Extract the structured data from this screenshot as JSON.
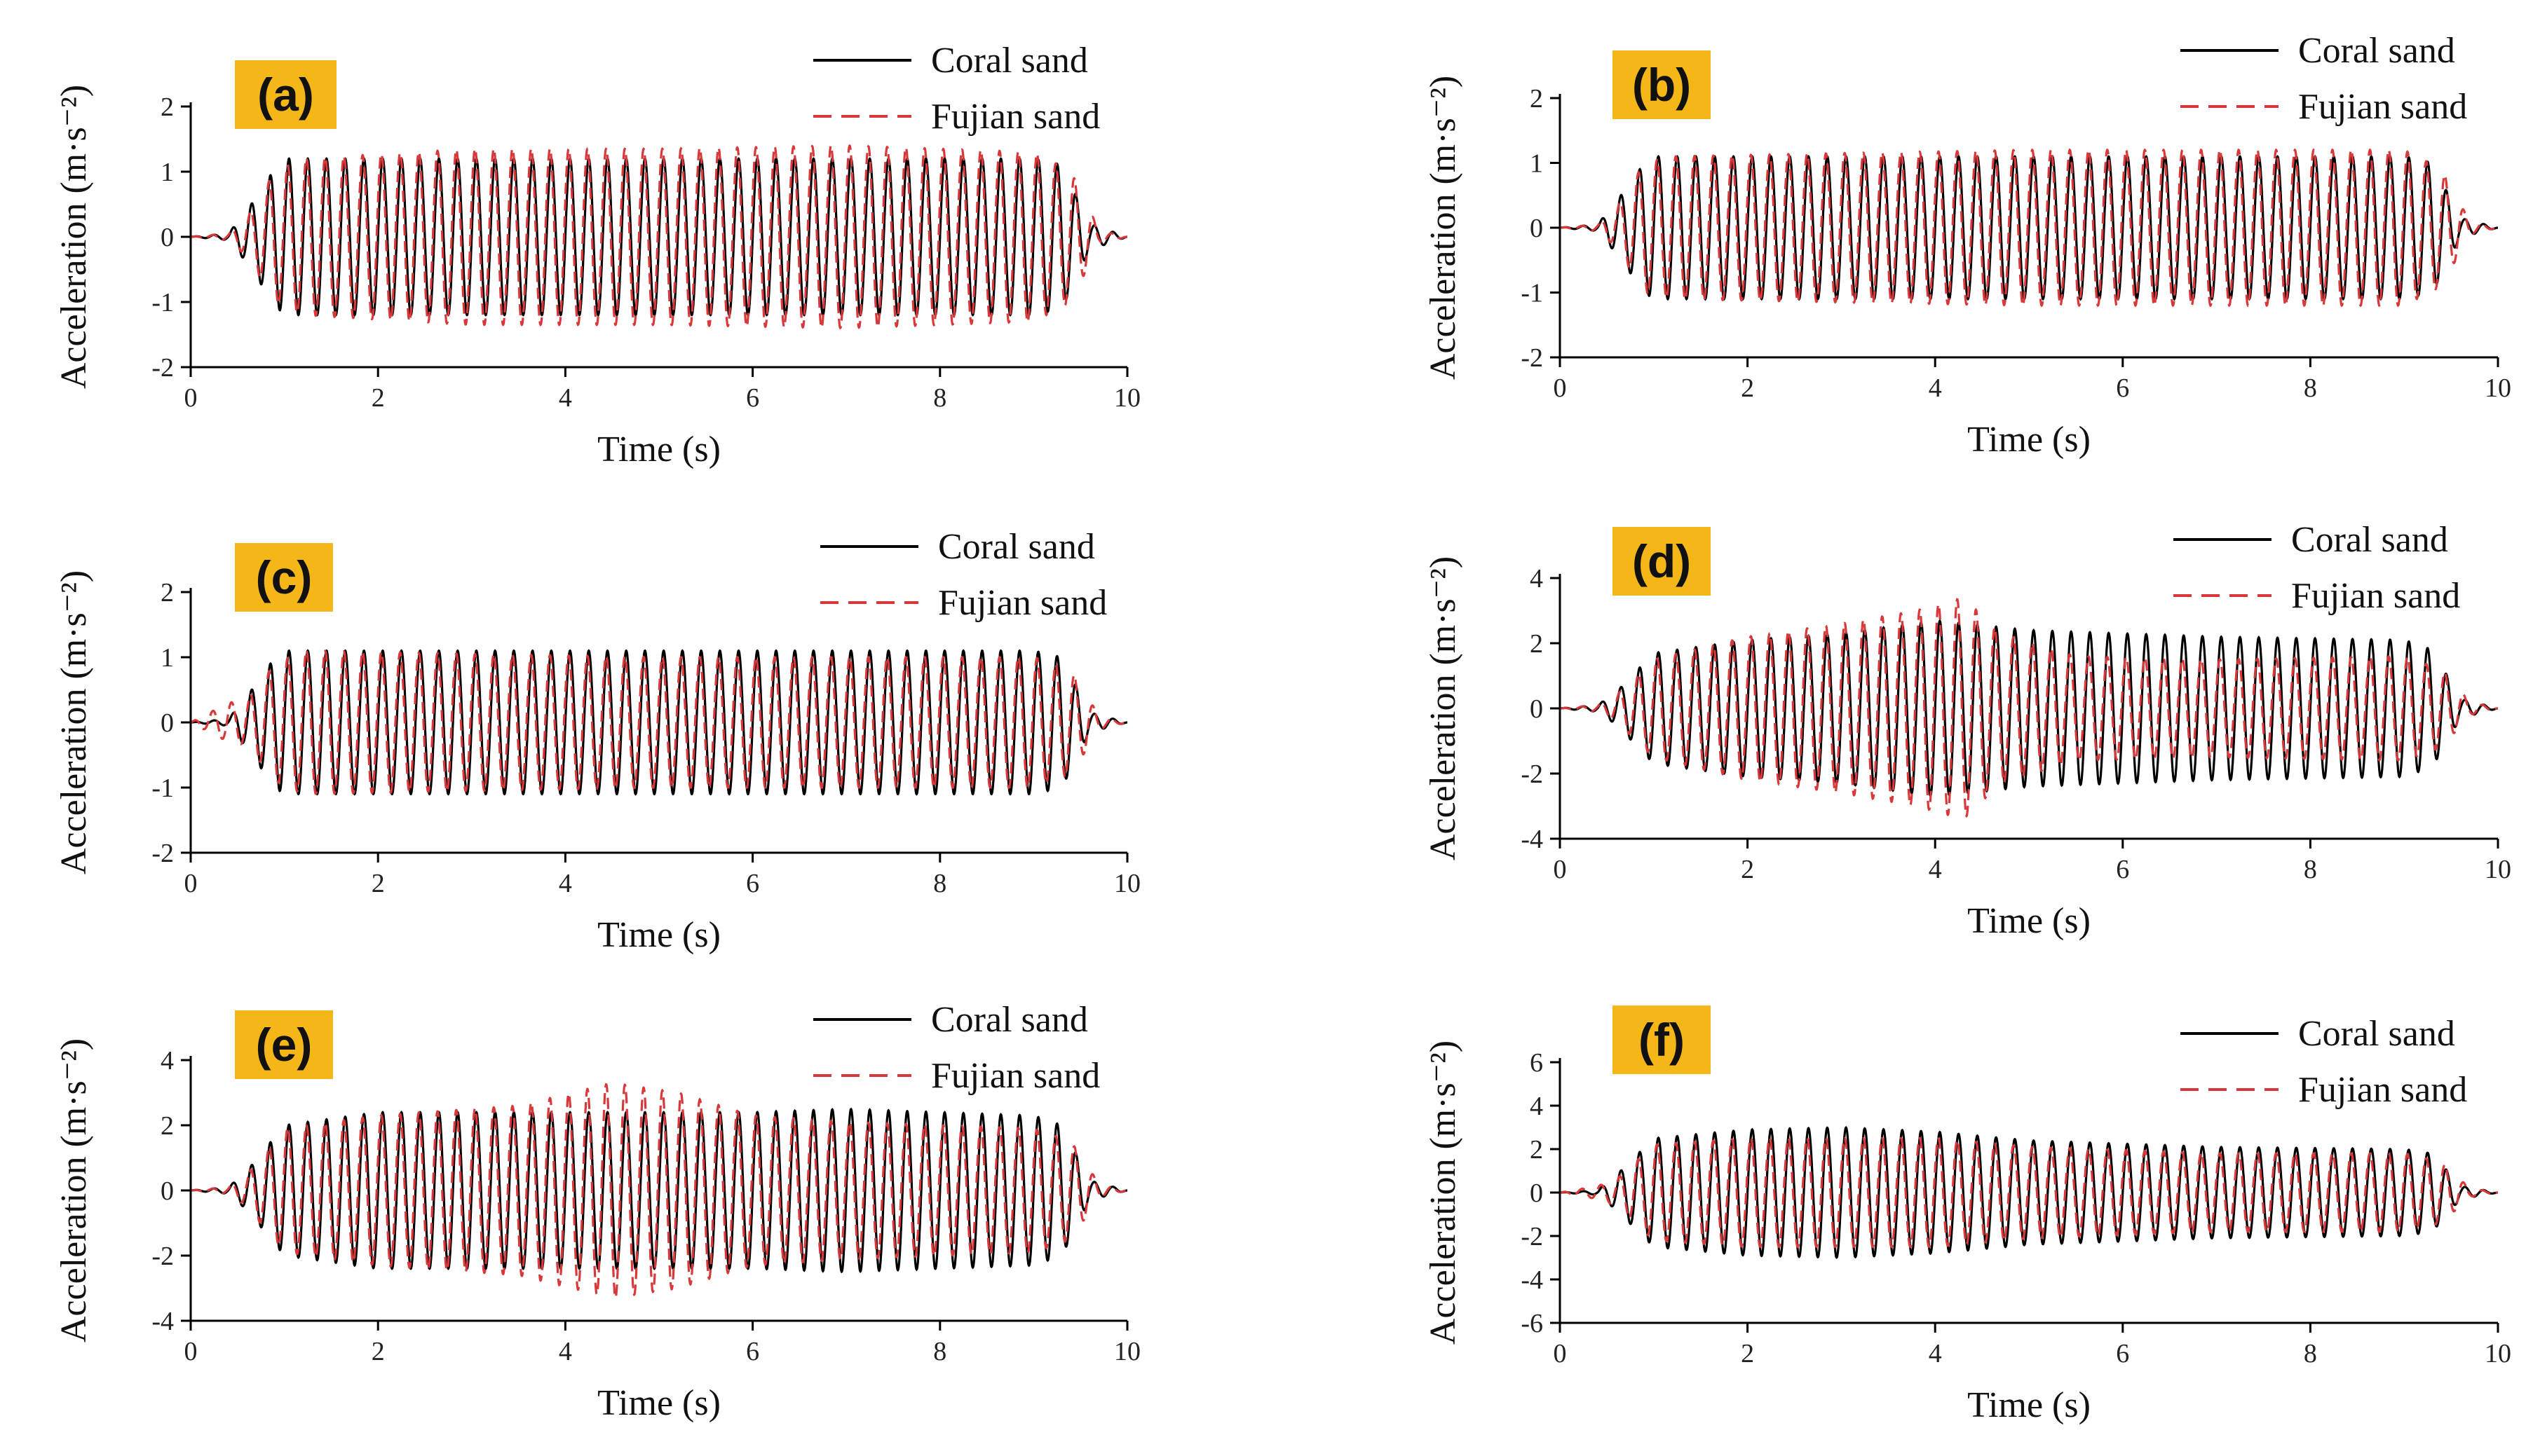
{
  "colors": {
    "coral": "#000000",
    "fujian": "#d9383a",
    "badge": "#f5b617",
    "axis": "#000000"
  },
  "chart_data": [
    {
      "type": "line",
      "panel_label": "(a)",
      "xlabel": "Time (s)",
      "ylabel": "Acceleration (m·s⁻²)",
      "xlim": [
        0,
        10
      ],
      "ylim": [
        -2,
        2
      ],
      "xticks": [
        0,
        2,
        4,
        6,
        8,
        10
      ],
      "yticks": [
        -2,
        -1,
        0,
        1,
        2
      ],
      "frequency_hz": 5,
      "series": [
        {
          "name": "Coral sand",
          "style": "solid",
          "envelope_t": [
            0,
            0.4,
            0.6,
            0.9,
            1.0,
            9.0,
            9.3,
            9.6,
            10
          ],
          "envelope_a": [
            0,
            0.05,
            0.4,
            1.05,
            1.2,
            1.2,
            1.1,
            0.2,
            0
          ]
        },
        {
          "name": "Fujian sand",
          "style": "dashed",
          "envelope_t": [
            0,
            0.4,
            0.6,
            0.9,
            1.2,
            3.0,
            5.0,
            7.0,
            9.0,
            9.4,
            9.7,
            10
          ],
          "envelope_a": [
            0,
            0.05,
            0.3,
            1.0,
            1.2,
            1.35,
            1.35,
            1.4,
            1.3,
            1.0,
            0.1,
            0
          ]
        }
      ],
      "legend": [
        "Coral sand",
        "Fujian sand"
      ]
    },
    {
      "type": "line",
      "panel_label": "(b)",
      "xlabel": "Time (s)",
      "ylabel": "Acceleration (m·s⁻²)",
      "xlim": [
        0,
        10
      ],
      "ylim": [
        -2,
        2
      ],
      "xticks": [
        0,
        2,
        4,
        6,
        8,
        10
      ],
      "yticks": [
        -2,
        -1,
        0,
        1,
        2
      ],
      "frequency_hz": 5,
      "series": [
        {
          "name": "Coral sand",
          "style": "solid",
          "envelope_t": [
            0,
            0.4,
            0.6,
            0.9,
            1.0,
            9.0,
            9.3,
            9.6,
            10
          ],
          "envelope_a": [
            0,
            0.05,
            0.4,
            1.0,
            1.1,
            1.1,
            1.0,
            0.15,
            0
          ]
        },
        {
          "name": "Fujian sand",
          "style": "dashed",
          "envelope_t": [
            0,
            0.4,
            0.6,
            0.9,
            1.2,
            3.0,
            5.0,
            7.0,
            9.0,
            9.4,
            9.7,
            10
          ],
          "envelope_a": [
            0,
            0.05,
            0.3,
            1.0,
            1.1,
            1.15,
            1.2,
            1.2,
            1.2,
            0.9,
            0.1,
            0
          ]
        }
      ],
      "legend": [
        "Coral sand",
        "Fujian sand"
      ]
    },
    {
      "type": "line",
      "panel_label": "(c)",
      "xlabel": "Time (s)",
      "ylabel": "Acceleration (m·s⁻²)",
      "xlim": [
        0,
        10
      ],
      "ylim": [
        -2,
        2
      ],
      "xticks": [
        0,
        2,
        4,
        6,
        8,
        10
      ],
      "yticks": [
        -2,
        -1,
        0,
        1,
        2
      ],
      "frequency_hz": 5,
      "series": [
        {
          "name": "Coral sand",
          "style": "solid",
          "envelope_t": [
            0,
            0.4,
            0.6,
            0.9,
            1.0,
            9.0,
            9.3,
            9.6,
            10
          ],
          "envelope_a": [
            0,
            0.05,
            0.4,
            1.0,
            1.1,
            1.1,
            1.0,
            0.15,
            0
          ]
        },
        {
          "name": "Fujian sand",
          "style": "dashed",
          "envelope_t": [
            0,
            0.4,
            0.6,
            0.9,
            1.2,
            3.0,
            5.0,
            7.0,
            9.0,
            9.4,
            9.7,
            10
          ],
          "envelope_a": [
            0,
            0.3,
            0.35,
            0.9,
            1.1,
            1.05,
            1.0,
            1.0,
            1.0,
            0.8,
            0.1,
            0
          ]
        }
      ],
      "legend": [
        "Coral sand",
        "Fujian sand"
      ]
    },
    {
      "type": "line",
      "panel_label": "(d)",
      "xlabel": "Time (s)",
      "ylabel": "Acceleration (m·s⁻²)",
      "xlim": [
        0,
        10
      ],
      "ylim": [
        -4,
        4
      ],
      "xticks": [
        0,
        2,
        4,
        6,
        8,
        10
      ],
      "yticks": [
        -4,
        -2,
        0,
        2,
        4
      ],
      "frequency_hz": 5,
      "series": [
        {
          "name": "Coral sand",
          "style": "solid",
          "envelope_t": [
            0,
            0.4,
            0.6,
            1.0,
            2.0,
            3.0,
            4.0,
            5.0,
            7.0,
            9.0,
            9.3,
            9.6,
            10
          ],
          "envelope_a": [
            0,
            0.1,
            0.5,
            1.7,
            2.1,
            2.3,
            2.7,
            2.4,
            2.2,
            2.1,
            1.8,
            0.3,
            0
          ]
        },
        {
          "name": "Fujian sand",
          "style": "dashed",
          "envelope_t": [
            0,
            0.4,
            0.6,
            1.0,
            2.0,
            3.0,
            3.8,
            4.3,
            4.7,
            5.5,
            7.0,
            9.0,
            9.4,
            9.7,
            10
          ],
          "envelope_a": [
            0,
            0.1,
            0.4,
            1.5,
            2.2,
            2.6,
            3.0,
            3.4,
            2.3,
            1.6,
            1.5,
            1.6,
            1.2,
            0.2,
            0
          ]
        }
      ],
      "legend": [
        "Coral sand",
        "Fujian sand"
      ]
    },
    {
      "type": "line",
      "panel_label": "(e)",
      "xlabel": "Time (s)",
      "ylabel": "Acceleration (m·s⁻²)",
      "xlim": [
        0,
        10
      ],
      "ylim": [
        -4,
        4
      ],
      "xticks": [
        0,
        2,
        4,
        6,
        8,
        10
      ],
      "yticks": [
        -4,
        -2,
        0,
        2,
        4
      ],
      "frequency_hz": 5,
      "series": [
        {
          "name": "Coral sand",
          "style": "solid",
          "envelope_t": [
            0,
            0.4,
            0.6,
            1.0,
            2.0,
            4.0,
            6.0,
            7.0,
            9.0,
            9.3,
            9.6,
            10
          ],
          "envelope_a": [
            0,
            0.1,
            0.6,
            2.0,
            2.4,
            2.4,
            2.4,
            2.5,
            2.3,
            2.0,
            0.3,
            0
          ]
        },
        {
          "name": "Fujian sand",
          "style": "dashed",
          "envelope_t": [
            0,
            0.4,
            0.6,
            1.0,
            2.0,
            3.5,
            4.5,
            5.2,
            6.0,
            7.0,
            9.0,
            9.4,
            9.7,
            10
          ],
          "envelope_a": [
            0,
            0.1,
            0.5,
            1.9,
            2.3,
            2.6,
            3.3,
            3.0,
            2.3,
            2.1,
            1.9,
            1.5,
            0.2,
            0
          ]
        }
      ],
      "legend": [
        "Coral sand",
        "Fujian sand"
      ]
    },
    {
      "type": "line",
      "panel_label": "(f)",
      "xlabel": "Time (s)",
      "ylabel": "Acceleration (m·s⁻²)",
      "xlim": [
        0,
        10
      ],
      "ylim": [
        -6,
        6
      ],
      "xticks": [
        0,
        2,
        4,
        6,
        8,
        10
      ],
      "yticks": [
        -6,
        -4,
        -2,
        0,
        2,
        4,
        6
      ],
      "frequency_hz": 5,
      "series": [
        {
          "name": "Coral sand",
          "style": "solid",
          "envelope_t": [
            0,
            0.4,
            0.6,
            1.0,
            2.0,
            3.0,
            4.0,
            5.0,
            7.0,
            9.0,
            9.3,
            9.6,
            10
          ],
          "envelope_a": [
            0,
            0.1,
            0.8,
            2.5,
            2.9,
            3.0,
            2.8,
            2.4,
            2.1,
            2.0,
            1.8,
            0.3,
            0
          ]
        },
        {
          "name": "Fujian sand",
          "style": "dashed",
          "envelope_t": [
            0,
            0.4,
            0.6,
            1.0,
            2.0,
            3.0,
            4.0,
            5.0,
            7.0,
            9.0,
            9.4,
            9.7,
            10
          ],
          "envelope_a": [
            0,
            0.3,
            0.6,
            2.2,
            2.5,
            2.5,
            2.5,
            2.1,
            1.8,
            1.8,
            1.4,
            0.2,
            0
          ]
        }
      ],
      "legend": [
        "Coral sand",
        "Fujian sand"
      ]
    }
  ]
}
